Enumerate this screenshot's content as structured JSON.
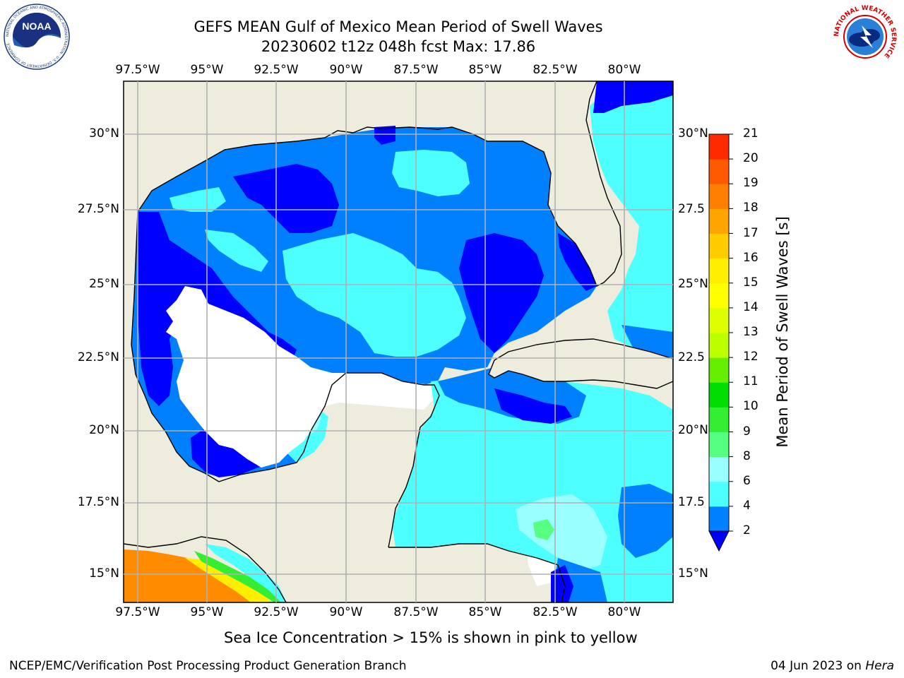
{
  "title": {
    "line1": "GEFS MEAN Gulf of Mexico Mean Period of Swell Waves",
    "line2": "20230602 t12z 048h fcst   Max: 17.86"
  },
  "map_axes": {
    "lon_labels": [
      "97.5°W",
      "95°W",
      "92.5°W",
      "90°W",
      "87.5°W",
      "85°W",
      "82.5°W",
      "80°W"
    ],
    "lat_labels_left": [
      "30°N",
      "27.5°N",
      "25°N",
      "22.5°N",
      "20°N",
      "17.5°N",
      "15°N"
    ],
    "lat_labels_right": [
      "30°N",
      "27.5",
      "25°N",
      "22.5",
      "20°N",
      "17.5",
      "15°N"
    ]
  },
  "colorbar": {
    "label": "Mean Period of Swell Waves [s]",
    "ticks": [
      "2",
      "4",
      "6",
      "8",
      "9",
      "10",
      "11",
      "12",
      "13",
      "14",
      "15",
      "16",
      "17",
      "18",
      "19",
      "20",
      "21"
    ],
    "colors": [
      "#0080ff",
      "#00e6ff",
      "#4dffff",
      "#99ffff",
      "#55ff80",
      "#33ee33",
      "#00dd00",
      "#66ee00",
      "#bbff00",
      "#ddff00",
      "#ffff00",
      "#ffee00",
      "#ffcc00",
      "#ffa500",
      "#ff8000",
      "#ff5a00",
      "#ff2a00",
      "#ff0000"
    ],
    "under_color": "#0000ff"
  },
  "colors": {
    "land": "#eeecdc",
    "grid": "#b0b0b0",
    "deep_blue": "#0000ff",
    "mid_blue": "#0080ff",
    "cyan": "#4dffff",
    "orange": "#ff8c00"
  },
  "caption": "Sea Ice Concentration > 15% is shown in pink to yellow",
  "footer": {
    "left": "NCEP/EMC/Verification Post Processing Product Generation Branch",
    "date": "04 Jun 2023 on ",
    "host": "Hera"
  },
  "logos": {
    "noaa": "NOAA",
    "noaa_ring": "NATIONAL OCEANIC AND ATMOSPHERIC ADMINISTRATION · U.S. DEPARTMENT OF COMMERCE",
    "nws_ring": "NATIONAL WEATHER SERVICE"
  }
}
